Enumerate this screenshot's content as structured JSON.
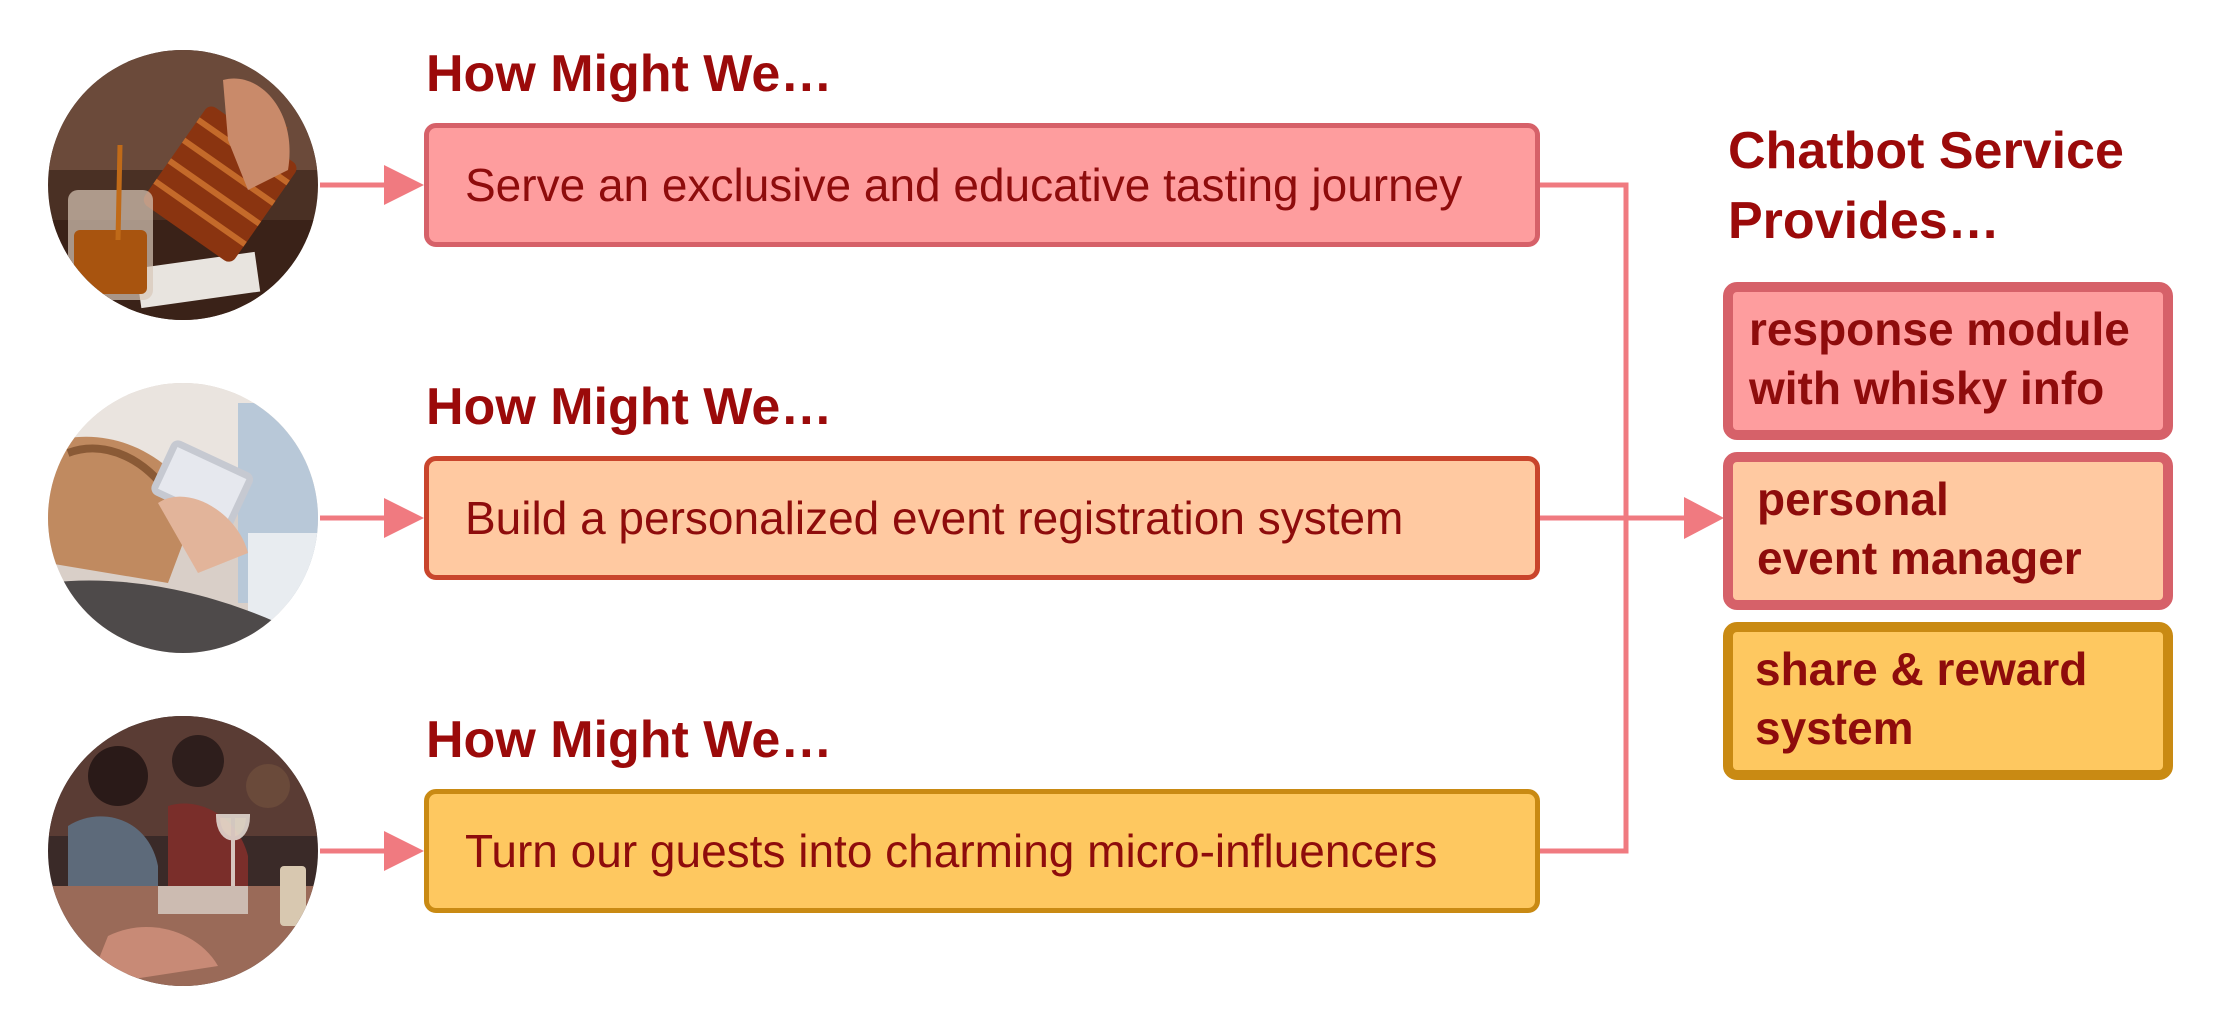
{
  "rows": [
    {
      "heading": "How Might We…",
      "statement": "Serve an exclusive and educative tasting journey",
      "photo_icon": "whisky-pouring-photo",
      "fill": "#fe9d9e",
      "border": "#d66169"
    },
    {
      "heading": "How Might We…",
      "statement": "Build a personalized event registration system",
      "photo_icon": "phone-in-hands-photo",
      "fill": "#ffc9a1",
      "border": "#c9452c"
    },
    {
      "heading": "How Might We…",
      "statement": "Turn our guests into charming micro-influencers",
      "photo_icon": "restaurant-guests-photo",
      "fill": "#fec860",
      "border": "#c98a13"
    }
  ],
  "provides": {
    "title_line1": "Chatbot Service",
    "title_line2": "Provides…",
    "items": [
      {
        "line1": "response module",
        "line2": "with whisky info",
        "fill": "#fe9d9e",
        "border": "#d66169"
      },
      {
        "line1": "personal",
        "line2": "event manager",
        "fill": "#ffc9a1",
        "border": "#d66169"
      },
      {
        "line1": "share & reward",
        "line2": "system",
        "fill": "#fec860",
        "border": "#c98a13"
      }
    ]
  },
  "colors": {
    "heading_text": "#9b0a0a",
    "body_text": "#8e0c0c",
    "connector": "#f07a80"
  }
}
